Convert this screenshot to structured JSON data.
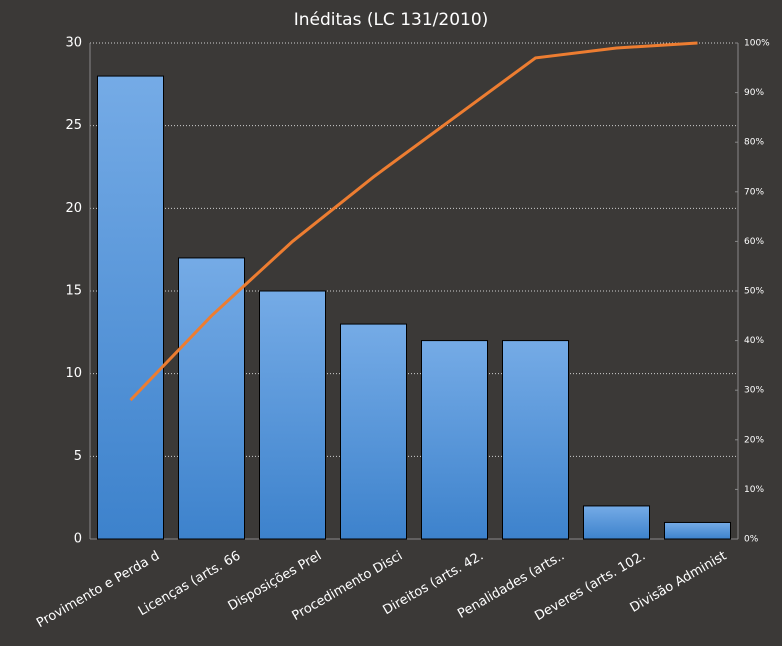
{
  "chart_data": {
    "type": "pareto",
    "title": "Inéditas (LC 131/2010)",
    "categories": [
      "Provimento  e Perda d",
      "Licenças (arts. 66",
      "Disposições Prel",
      "Procedimento Disci",
      "Direitos (arts. 42.",
      "Penalidades (arts..",
      "Deveres (arts. 102.",
      "Divisão Administ"
    ],
    "series": [
      {
        "type": "bar",
        "color": "#4a90d9",
        "values": [
          28,
          17,
          15,
          13,
          12,
          12,
          2,
          1
        ]
      },
      {
        "type": "line",
        "axis": "y2",
        "color": "#ed7d31",
        "values": [
          28,
          45,
          60,
          73,
          85,
          97,
          99,
          100
        ]
      }
    ],
    "ylim": [
      0,
      30
    ],
    "yticks": [
      0,
      5,
      10,
      15,
      20,
      25,
      30
    ],
    "y2lim": [
      0,
      100
    ],
    "y2ticks": [
      {
        "value": 0,
        "label": "0%"
      },
      {
        "value": 10,
        "label": "10%"
      },
      {
        "value": 20,
        "label": "20%"
      },
      {
        "value": 30,
        "label": "30%"
      },
      {
        "value": 40,
        "label": "40%"
      },
      {
        "value": 50,
        "label": "50%"
      },
      {
        "value": 60,
        "label": "60%"
      },
      {
        "value": 70,
        "label": "70%"
      },
      {
        "value": 80,
        "label": "80%"
      },
      {
        "value": 90,
        "label": "90%"
      },
      {
        "value": 100,
        "label": "100%"
      }
    ],
    "grid": true
  }
}
